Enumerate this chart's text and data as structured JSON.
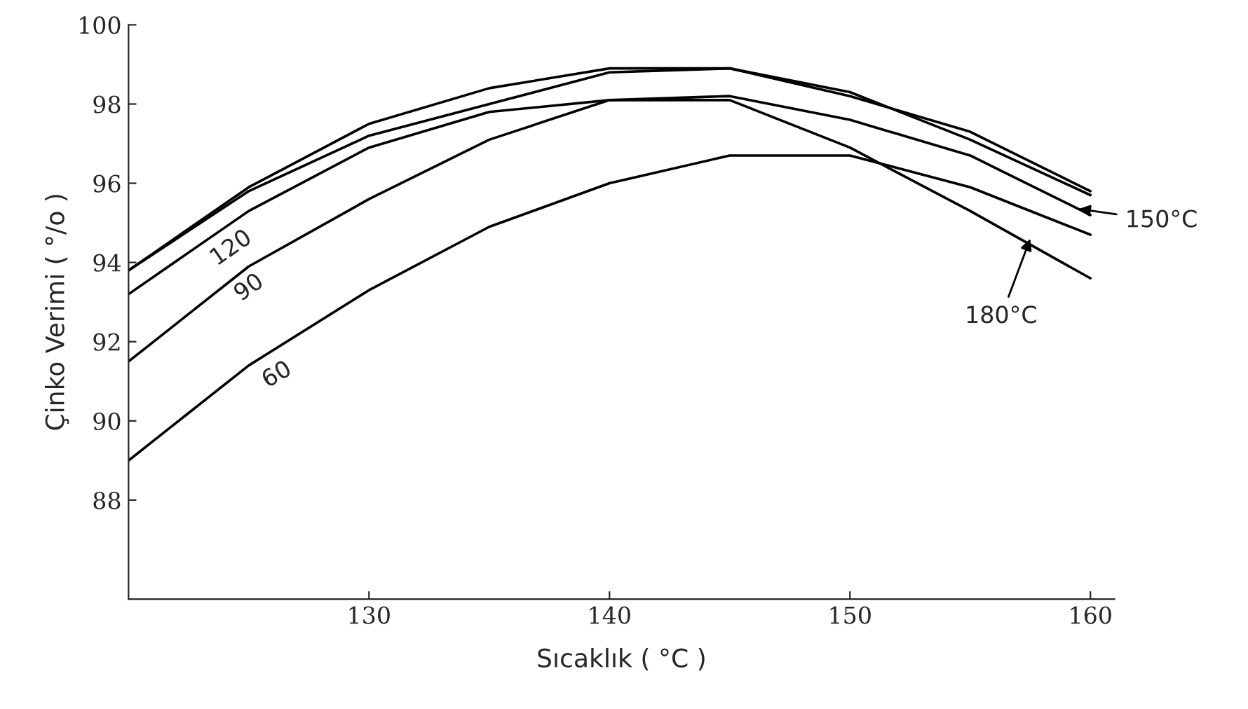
{
  "chart_data": {
    "type": "line",
    "xlabel": "Sıcaklık ( °C )",
    "ylabel": "Çinko Verimi ( °/o )",
    "xlim": [
      120,
      161
    ],
    "xticks": [
      130,
      140,
      150,
      160
    ],
    "ylim": [
      85.5,
      100
    ],
    "yticks": [
      88,
      90,
      92,
      94,
      96,
      98,
      100
    ],
    "grid": false,
    "legend": false,
    "marker": "none",
    "line_style": "solid",
    "x": [
      120,
      125,
      130,
      135,
      140,
      145,
      150,
      155,
      160
    ],
    "series": [
      {
        "color": "#000000",
        "values": [
          89.0,
          91.4,
          93.3,
          94.9,
          96.0,
          96.7,
          96.7,
          95.9,
          94.7
        ]
      },
      {
        "color": "#000000",
        "values": [
          91.5,
          93.9,
          95.6,
          97.1,
          98.1,
          98.1,
          96.9,
          95.3,
          93.6
        ]
      },
      {
        "color": "#000000",
        "values": [
          93.2,
          95.3,
          96.9,
          97.8,
          98.1,
          98.2,
          97.6,
          96.7,
          95.2
        ]
      },
      {
        "color": "#000000",
        "values": [
          93.8,
          95.8,
          97.2,
          98.0,
          98.8,
          98.9,
          98.3,
          97.1,
          95.7
        ]
      },
      {
        "color": "#000000",
        "values": [
          93.8,
          95.9,
          97.5,
          98.4,
          98.9,
          98.9,
          98.2,
          97.3,
          95.8
        ]
      }
    ],
    "annotations": [
      {
        "text": "60",
        "x": 125,
        "y": 91.4
      },
      {
        "text": "90",
        "x": 124,
        "y": 93.5
      },
      {
        "text": "120",
        "x": 123,
        "y": 94.5
      },
      {
        "text": "150°C",
        "x": 159.5,
        "y": 95.35
      },
      {
        "text": "180°C",
        "x": 157.5,
        "y": 94.6
      }
    ]
  }
}
